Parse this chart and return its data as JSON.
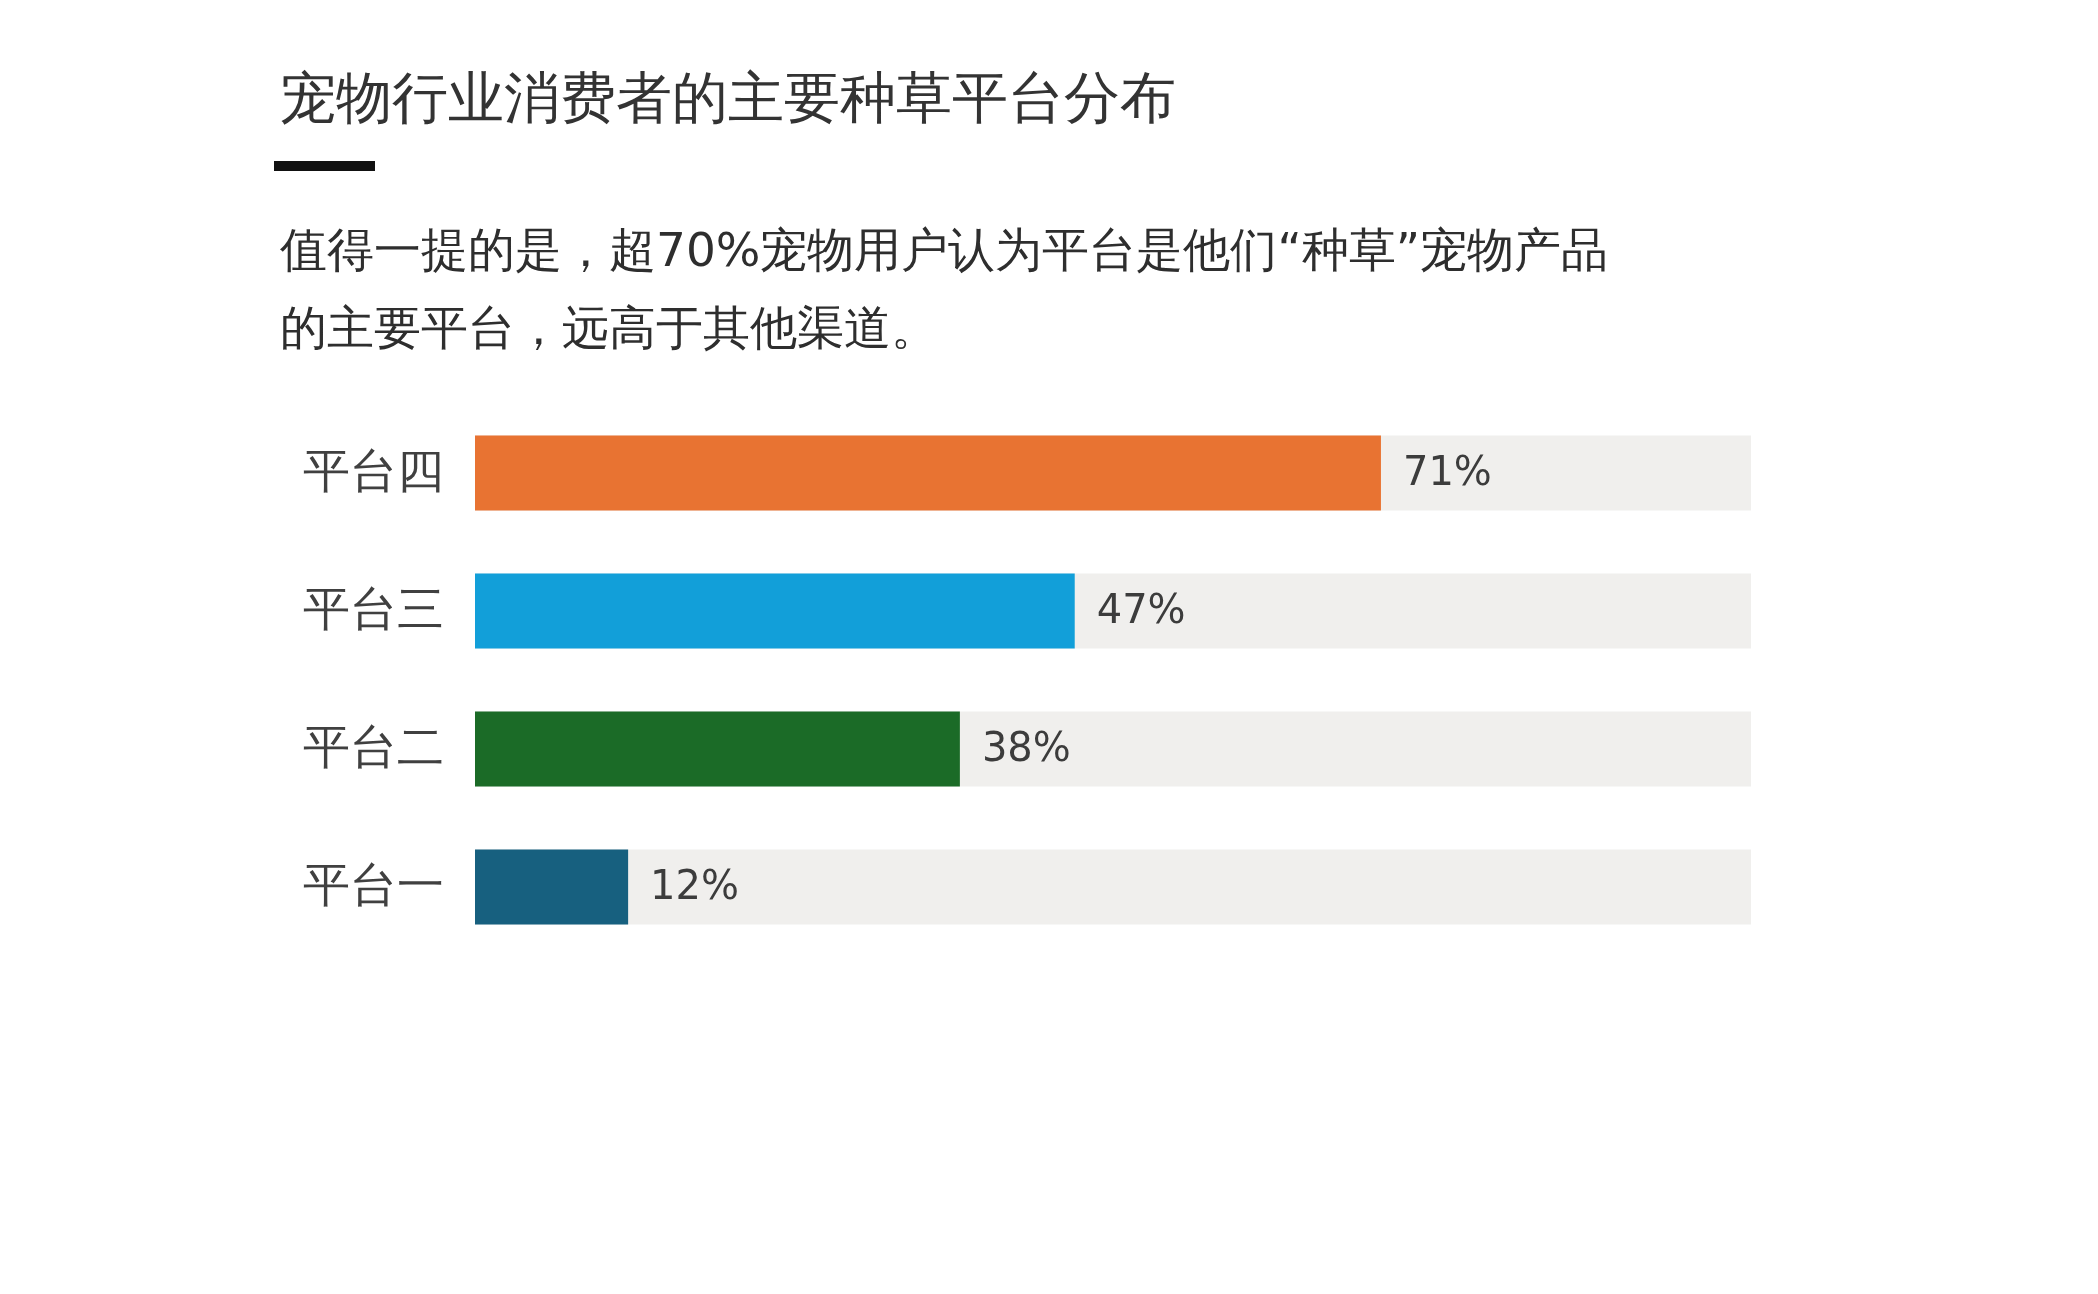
{
  "chart_data": {
    "type": "bar",
    "orientation": "horizontal",
    "title": "宠物行业消费者的主要种草平台分布",
    "subtitle": "值得一提的是，超70%宠物用户认为平台是他们“种草”宠物产品的主要平台，远高于其他渠道。",
    "categories": [
      "平台四",
      "平台三",
      "平台二",
      "平台一"
    ],
    "values": [
      71,
      47,
      38,
      12
    ],
    "colors": [
      "#e87332",
      "#129fd9",
      "#1b6b27",
      "#17607f"
    ],
    "value_labels": [
      "71%",
      "47%",
      "38%",
      "12%"
    ],
    "xlim": [
      0,
      100
    ],
    "tick_labels": "y"
  }
}
